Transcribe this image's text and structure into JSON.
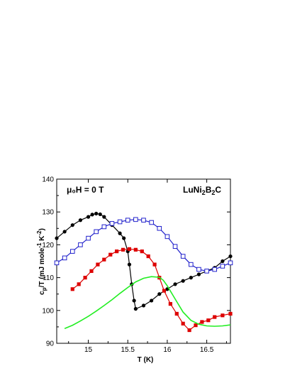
{
  "chart_data": {
    "type": "scatter",
    "xlabel": "T (K)",
    "ylabel_main": "c",
    "ylabel_sub": "p",
    "ylabel_rest": "/T (mJ mole",
    "ylabel_sup1": "-1",
    "ylabel_mid": " K",
    "ylabel_sup2": "-2",
    "ylabel_end": ")",
    "xlim": [
      14.6,
      16.8
    ],
    "ylim": [
      90,
      140
    ],
    "x_ticks": [
      15,
      15.5,
      16,
      16.5
    ],
    "x_tick_labels": [
      "15",
      "15.5",
      "16",
      "16.5"
    ],
    "y_ticks": [
      90,
      100,
      110,
      120,
      130,
      140
    ],
    "y_tick_labels": [
      "90",
      "100",
      "110",
      "120",
      "130",
      "140"
    ],
    "grid": false,
    "annotations": {
      "field": "μ₀H = 0 T",
      "compound_main": "LuNi",
      "compound_sub1": "2",
      "compound_mid": "B",
      "compound_sub2": "2",
      "compound_end": "C"
    },
    "series": [
      {
        "color": "#000000",
        "marker": "circle-filled",
        "x": [
          14.6,
          14.7,
          14.8,
          14.9,
          15.0,
          15.05,
          15.1,
          15.15,
          15.2,
          15.3,
          15.4,
          15.45,
          15.5,
          15.52,
          15.55,
          15.58,
          15.6,
          15.7,
          15.8,
          15.9,
          16.0,
          16.1,
          16.2,
          16.3,
          16.4,
          16.5,
          16.6,
          16.7,
          16.8
        ],
        "values": [
          122,
          124,
          126,
          127.5,
          128.5,
          129.2,
          129.5,
          129.3,
          128.5,
          126,
          123.5,
          122,
          118,
          114,
          108,
          103,
          100.5,
          101.5,
          103,
          105,
          106.5,
          108,
          109,
          110,
          111,
          112,
          113,
          115,
          116.5
        ]
      },
      {
        "color": "#2222cc",
        "marker": "square-open",
        "x": [
          14.6,
          14.7,
          14.8,
          14.9,
          15.0,
          15.1,
          15.2,
          15.3,
          15.4,
          15.5,
          15.6,
          15.7,
          15.8,
          15.9,
          16.0,
          16.1,
          16.2,
          16.3,
          16.4,
          16.5,
          16.6,
          16.7,
          16.8
        ],
        "values": [
          114.5,
          116,
          118,
          120,
          122,
          124,
          125.5,
          126.5,
          127,
          127.5,
          127.7,
          127.5,
          126.8,
          125,
          122.5,
          119.5,
          116.5,
          114,
          112.5,
          112,
          112.5,
          113.5,
          114.5
        ]
      },
      {
        "color": "#dd0000",
        "marker": "square-filled",
        "x": [
          14.8,
          14.88,
          14.96,
          15.04,
          15.12,
          15.2,
          15.28,
          15.36,
          15.44,
          15.52,
          15.6,
          15.68,
          15.76,
          15.84,
          15.9,
          15.96,
          16.04,
          16.12,
          16.2,
          16.28,
          16.36,
          16.44,
          16.52,
          16.6,
          16.7,
          16.8
        ],
        "values": [
          106.5,
          108,
          110,
          112,
          114,
          115.5,
          117,
          118,
          118.5,
          118.7,
          118.5,
          118,
          116.5,
          114,
          110,
          106,
          102,
          99,
          96,
          94,
          95.5,
          96.5,
          97,
          98,
          98.5,
          99
        ]
      },
      {
        "color": "#22ee22",
        "marker": "none",
        "x": [
          14.7,
          14.8,
          14.9,
          15.0,
          15.1,
          15.2,
          15.3,
          15.4,
          15.5,
          15.6,
          15.7,
          15.8,
          15.9,
          15.95,
          16.0,
          16.1,
          16.2,
          16.3,
          16.4,
          16.5,
          16.6,
          16.7,
          16.8
        ],
        "values": [
          94.5,
          95.5,
          96.8,
          98.2,
          99.8,
          101.5,
          103.3,
          105.2,
          107,
          108.7,
          109.8,
          110.3,
          110.1,
          109.2,
          107.5,
          103.5,
          99.5,
          97,
          95.8,
          95.3,
          95.2,
          95.3,
          95.6
        ]
      }
    ]
  }
}
